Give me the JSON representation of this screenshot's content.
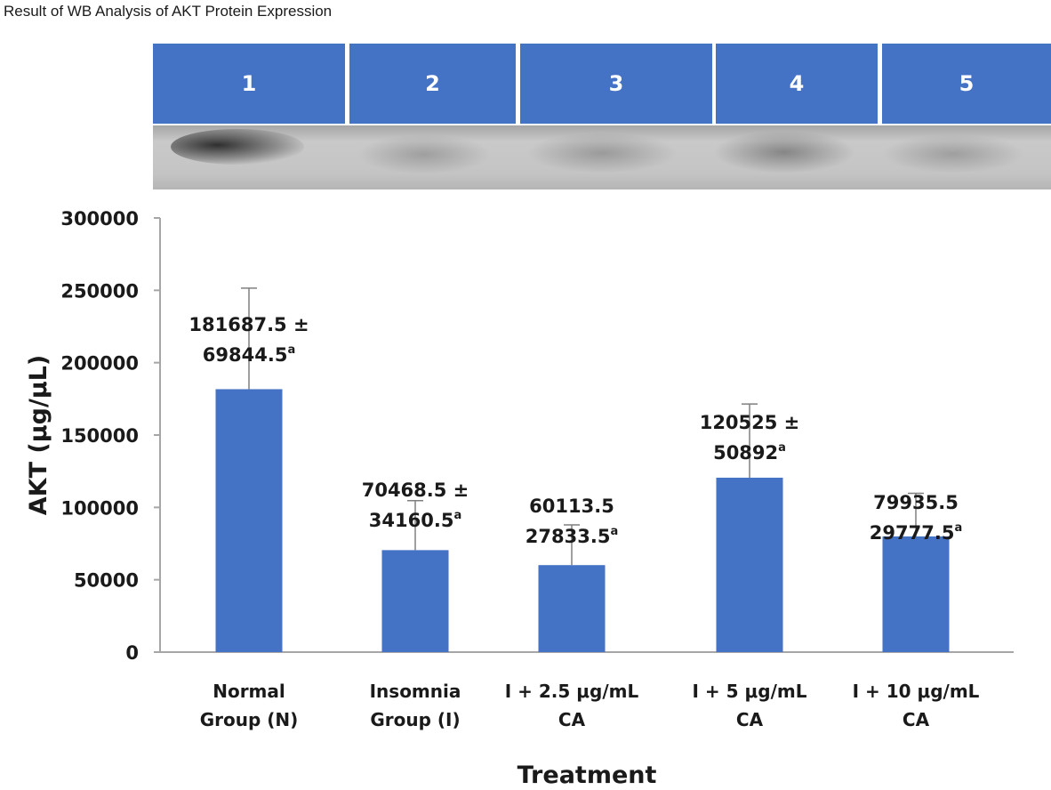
{
  "page": {
    "title": "Result of WB Analysis of AKT Protein Expression"
  },
  "lanes": [
    "1",
    "2",
    "3",
    "4",
    "5"
  ],
  "chart_data": {
    "type": "bar",
    "categories": [
      [
        "Normal",
        "Group (N)"
      ],
      [
        "Insomnia",
        "Group (I)"
      ],
      [
        "I + 2.5 μg/mL",
        "CA"
      ],
      [
        "I + 5 μg/mL",
        "CA"
      ],
      [
        "I + 10 μg/mL",
        "CA"
      ]
    ],
    "values": [
      181687.5,
      70468.5,
      60113.5,
      120525,
      79935.5
    ],
    "errors": [
      69844.5,
      34160.5,
      27833.5,
      50892,
      29777.5
    ],
    "data_labels": [
      [
        "181687.5 ±",
        "69844.5",
        "a"
      ],
      [
        "70468.5 ±",
        "34160.5",
        "a"
      ],
      [
        "60113.5",
        "27833.5",
        "a"
      ],
      [
        "120525 ±",
        "50892",
        "a"
      ],
      [
        "79935.5",
        "29777.5",
        "a"
      ]
    ],
    "xlabel": "Treatment",
    "ylabel": "AKT (μg/μL)",
    "ylim": [
      0,
      300000
    ],
    "yticks": [
      0,
      50000,
      100000,
      150000,
      200000,
      250000,
      300000
    ],
    "grid": false,
    "colors": {
      "bar": "#4472c4",
      "error_bar": "#7f7f7f",
      "axis": "#a6a6a6",
      "lane_header": "#4472c4"
    }
  }
}
